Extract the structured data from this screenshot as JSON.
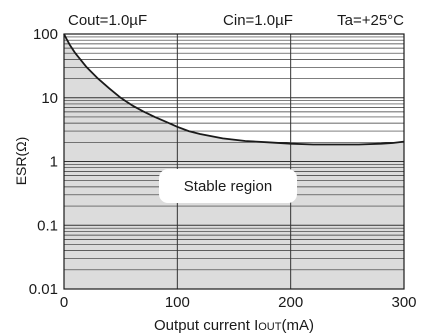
{
  "chart_data": {
    "type": "area",
    "annotations": {
      "cout": "Cout=1.0µF",
      "cin": "Cin=1.0µF",
      "ta": "Ta=+25°C",
      "region": "Stable region"
    },
    "xlabel": {
      "prefix": "Output current I",
      "sub": "OUT",
      "suffix": "(mA)"
    },
    "ylabel": "ESR(Ω)",
    "xlim": [
      0,
      300
    ],
    "ylim": [
      0.01,
      100
    ],
    "yscale": "log",
    "x_ticks": [
      0,
      100,
      200,
      300
    ],
    "y_ticks": [
      {
        "value": 0.01,
        "label": "0.01"
      },
      {
        "value": 0.1,
        "label": "0.1"
      },
      {
        "value": 1,
        "label": "1"
      },
      {
        "value": 10,
        "label": "10"
      },
      {
        "value": 100,
        "label": "100"
      }
    ],
    "grid": true,
    "colors": {
      "fill": "#dcdcdc",
      "line": "#1a1a1a",
      "grid": "#333333"
    },
    "series": [
      {
        "x": [
          0,
          2,
          5,
          10,
          20,
          30,
          40,
          50,
          60,
          70,
          80,
          90,
          100,
          110,
          120,
          140,
          160,
          180,
          200,
          220,
          240,
          260,
          280,
          290,
          300
        ],
        "values": [
          100,
          85,
          68,
          50,
          30,
          20,
          14,
          10,
          7.6,
          6.1,
          5.0,
          4.2,
          3.5,
          3.0,
          2.7,
          2.3,
          2.1,
          2.0,
          1.9,
          1.85,
          1.85,
          1.85,
          1.9,
          1.95,
          2.05
        ]
      }
    ]
  }
}
